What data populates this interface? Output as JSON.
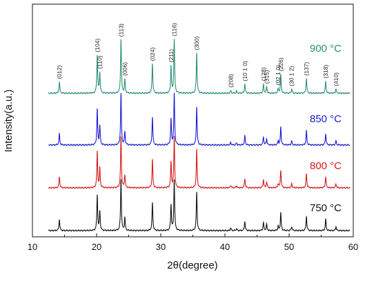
{
  "chart_data": {
    "type": "line",
    "xlabel": "2θ(degree)",
    "ylabel": "Intensity(a.u.)",
    "xlim": [
      10,
      60
    ],
    "xticks": [
      10,
      20,
      30,
      40,
      50,
      60
    ],
    "grid": false,
    "legend": "inline labels at right of each trace",
    "y_ticks_shown": false,
    "stacked_offset": true,
    "series": [
      {
        "name": "900 °C",
        "color": "#2a8f77",
        "baseline": 3.0,
        "scale": 1.0
      },
      {
        "name": "850 °C",
        "color": "#1a1ad0",
        "baseline": 2.0,
        "scale": 0.95
      },
      {
        "name": "800 °C",
        "color": "#d41a1a",
        "baseline": 1.0,
        "scale": 0.95
      },
      {
        "name": "750 °C",
        "color": "#111111",
        "baseline": 0.0,
        "scale": 0.95
      }
    ],
    "peaks": [
      {
        "two_theta": 14.2,
        "height": 0.22,
        "hkl": "(012)"
      },
      {
        "two_theta": 20.1,
        "height": 0.7,
        "hkl": "(104)"
      },
      {
        "two_theta": 20.5,
        "height": 0.38,
        "hkl": "(110)"
      },
      {
        "two_theta": 23.8,
        "height": 1.0,
        "hkl": "(113)"
      },
      {
        "two_theta": 24.4,
        "height": 0.25,
        "hkl": "(006)"
      },
      {
        "two_theta": 28.7,
        "height": 0.55,
        "hkl": "(024)"
      },
      {
        "two_theta": 31.6,
        "height": 0.5,
        "hkl": "(211)"
      },
      {
        "two_theta": 32.1,
        "height": 1.0,
        "hkl": "(116)"
      },
      {
        "two_theta": 35.6,
        "height": 0.75,
        "hkl": "(300)"
      },
      {
        "two_theta": 40.9,
        "height": 0.05,
        "hkl": "(208)"
      },
      {
        "two_theta": 41.8,
        "height": 0.04,
        "hkl": ""
      },
      {
        "two_theta": 43.1,
        "height": 0.18,
        "hkl": "(10 1 0)"
      },
      {
        "two_theta": 46.0,
        "height": 0.16,
        "hkl": "(128)"
      },
      {
        "two_theta": 46.5,
        "height": 0.12,
        "hkl": "(315)"
      },
      {
        "two_theta": 48.3,
        "height": 0.08,
        "hkl": "(02 1 0)"
      },
      {
        "two_theta": 48.7,
        "height": 0.35,
        "hkl": "(226)"
      },
      {
        "two_theta": 50.4,
        "height": 0.08,
        "hkl": "(30 1 2)"
      },
      {
        "two_theta": 52.7,
        "height": 0.28,
        "hkl": "(137)"
      },
      {
        "two_theta": 55.7,
        "height": 0.22,
        "hkl": "(318)"
      },
      {
        "two_theta": 57.3,
        "height": 0.08,
        "hkl": "(410)"
      }
    ]
  }
}
